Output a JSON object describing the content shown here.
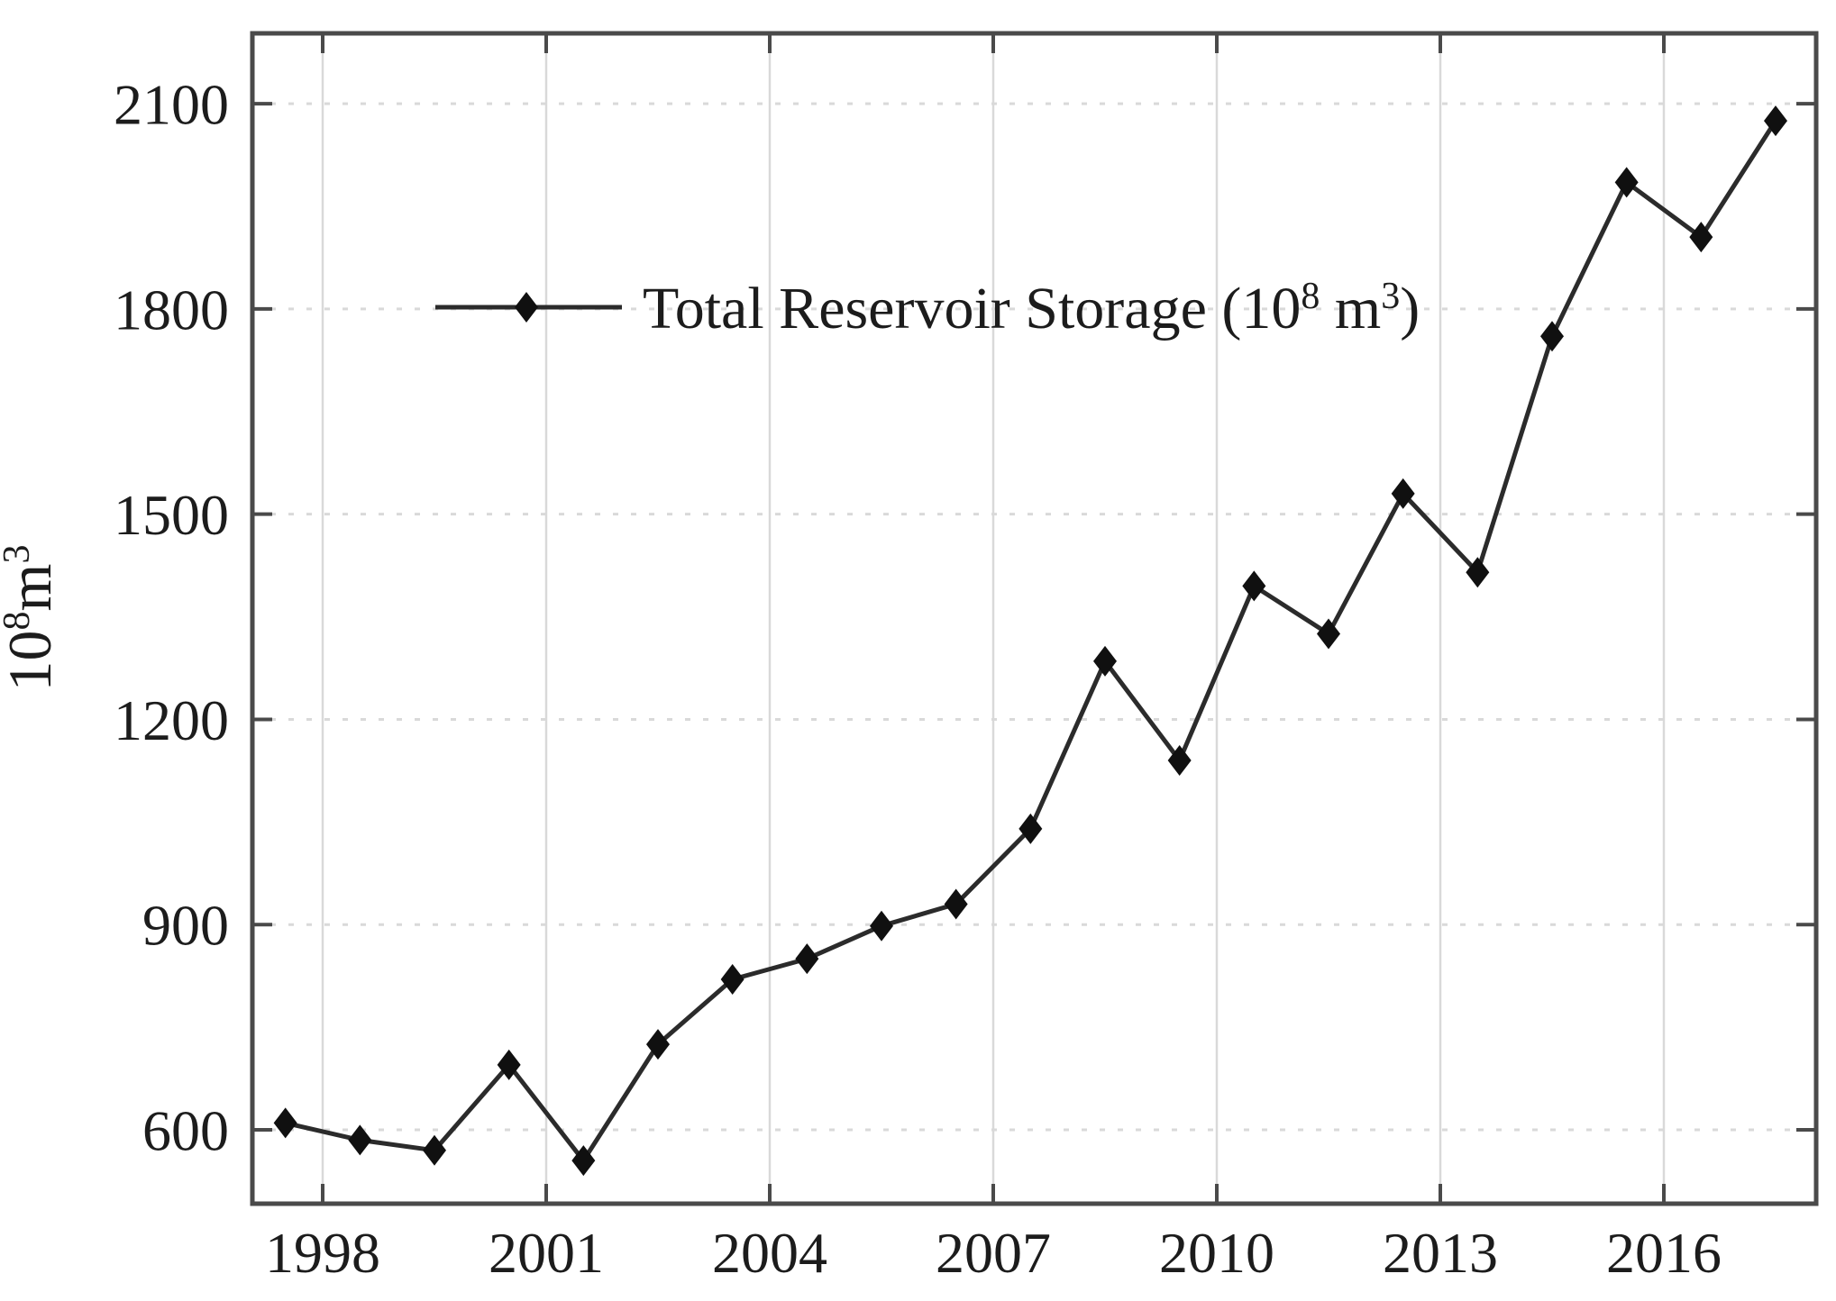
{
  "chart_data": {
    "type": "line",
    "title": "",
    "series": [
      {
        "name": "Total Reservoir Storage (10^8 m^3)",
        "x": [
          1997,
          1998,
          1999,
          2000,
          2001,
          2002,
          2003,
          2004,
          2005,
          2006,
          2007,
          2008,
          2009,
          2010,
          2011,
          2012,
          2013,
          2014,
          2015,
          2016,
          2017
        ],
        "values": [
          610,
          585,
          570,
          695,
          555,
          725,
          820,
          850,
          898,
          930,
          1040,
          1285,
          1140,
          1395,
          1325,
          1530,
          1415,
          1760,
          1985,
          1905,
          2075
        ]
      }
    ],
    "legend": {
      "text_main": "Total Reservoir Storage (10",
      "sup1": "8",
      "text_mid": " m",
      "sup2": "3",
      "text_end": ")",
      "position": "inside-top, left of center",
      "marker": "diamond-on-line"
    },
    "ylabel": {
      "text_main": "10",
      "sup1": "8",
      "text_mid": "m",
      "sup2": "3",
      "plain": "10^8 m^3"
    },
    "xlabel": "",
    "x_ticks": [
      1998,
      2001,
      2004,
      2007,
      2010,
      2013,
      2016
    ],
    "y_ticks": [
      600,
      900,
      1200,
      1500,
      1800,
      2100
    ],
    "ylim": [
      485,
      2205
    ],
    "x_tick_alignment": "year ticks fall midway between adjacent yearly data points",
    "grid": {
      "horizontal_style": "dotted",
      "vertical_style": "solid",
      "color": "#d9d9d9"
    },
    "marker": "diamond",
    "colors": {
      "line": "#2b2b2b",
      "marker": "#101010",
      "axis": "#4a4a4a",
      "text": "#1c1c1c",
      "grid": "#d9d9d9",
      "background": "#ffffff"
    }
  }
}
